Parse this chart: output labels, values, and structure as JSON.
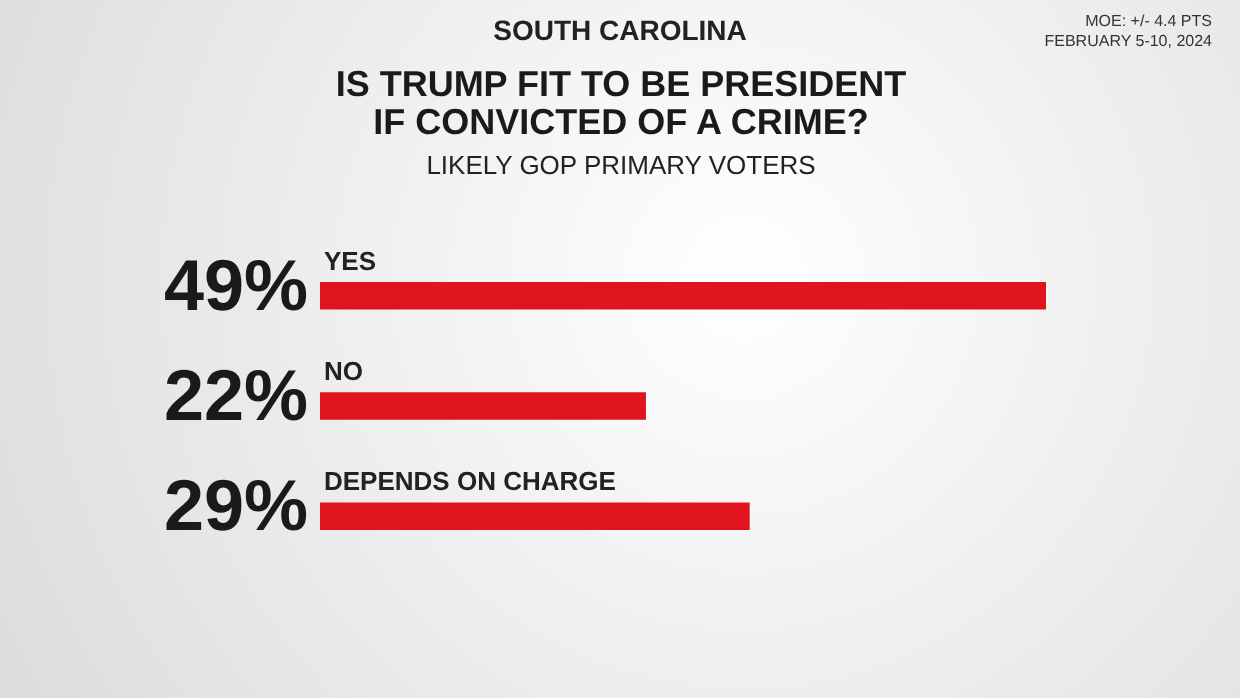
{
  "chart_data": {
    "type": "bar",
    "orientation": "horizontal",
    "title": "IS TRUMP FIT TO BE PRESIDENT IF CONVICTED OF A CRIME?",
    "subtitle": "LIKELY GOP PRIMARY VOTERS",
    "annotations": [
      "SOUTH CAROLINA",
      "MOE: +/- 4.4 PTS",
      "FEBRUARY 5-10, 2024"
    ],
    "categories": [
      "YES",
      "NO",
      "DEPENDS ON CHARGE"
    ],
    "values": [
      49,
      22,
      29
    ],
    "value_labels": [
      "49%",
      "22%",
      "29%"
    ],
    "color": "#e0141e"
  }
}
